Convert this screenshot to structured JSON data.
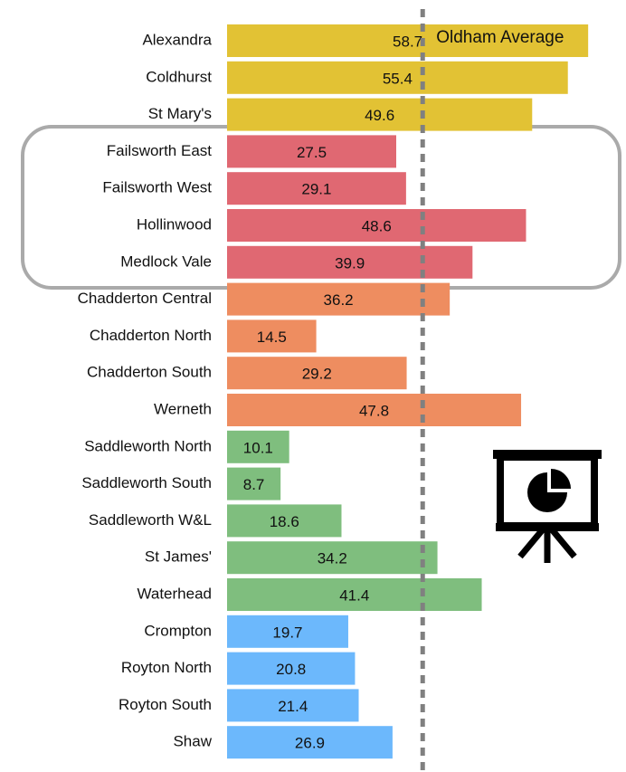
{
  "chart_data": {
    "type": "bar",
    "orientation": "horizontal",
    "categories": [
      "Alexandra",
      "Coldhurst",
      "St Mary's",
      "Failsworth East",
      "Failsworth West",
      "Hollinwood",
      "Medlock Vale",
      "Chadderton Central",
      "Chadderton North",
      "Chadderton South",
      "Werneth",
      "Saddleworth North",
      "Saddleworth South",
      "Saddleworth W&L",
      "St James'",
      "Waterhead",
      "Crompton",
      "Royton North",
      "Royton South",
      "Shaw"
    ],
    "values": [
      58.7,
      55.4,
      49.6,
      27.5,
      29.1,
      48.6,
      39.9,
      36.2,
      14.5,
      29.2,
      47.8,
      10.1,
      8.7,
      18.6,
      34.2,
      41.4,
      19.7,
      20.8,
      21.4,
      26.9
    ],
    "colors": [
      "#e2c234",
      "#e2c234",
      "#e2c234",
      "#e06872",
      "#e06872",
      "#e06872",
      "#e06872",
      "#ee8d60",
      "#ee8d60",
      "#ee8d60",
      "#ee8d60",
      "#7fbe7e",
      "#7fbe7e",
      "#7fbe7e",
      "#7fbe7e",
      "#7fbe7e",
      "#6cb8fc",
      "#6cb8fc",
      "#6cb8fc",
      "#6cb8fc"
    ],
    "xlim": [
      0,
      63
    ],
    "reference_line": {
      "value": 31.8,
      "label": "Oldham Average",
      "color": "#808080"
    }
  }
}
